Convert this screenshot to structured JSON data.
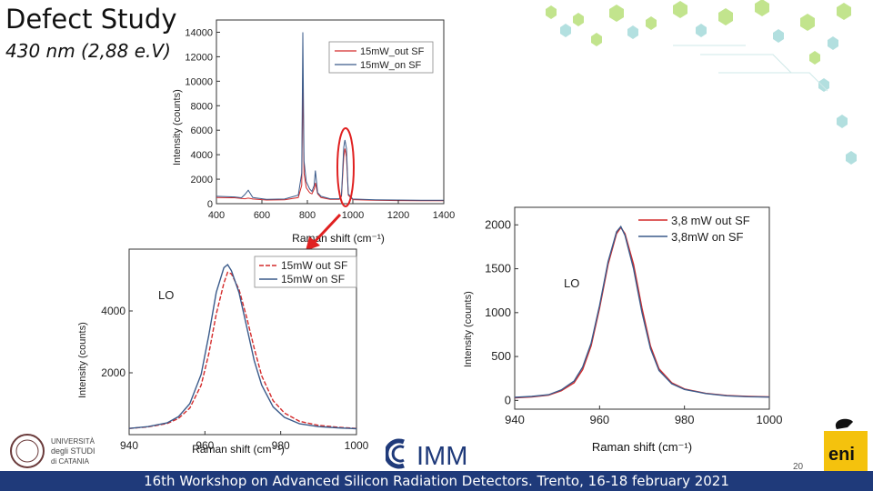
{
  "slide": {
    "title": "Defect Study",
    "subtitle": "430 nm (2,88 e.V)",
    "footer": "16th Workshop on Advanced Silicon Radiation Detectors. Trento, 16-18 february 2021",
    "page_number": "20",
    "logos": {
      "unict": [
        "UNIVERSITÀ",
        "degli STUDI",
        "di CATANIA"
      ],
      "imm": "IMM",
      "eni": "eni"
    },
    "colors": {
      "red": "#d42a2a",
      "blue": "#3a5a8a",
      "footer_bg": "#1f3a7a",
      "accent_green": "#a8d85a",
      "accent_cyan": "#9fd8d8"
    }
  },
  "chart_data": [
    {
      "id": "overview",
      "type": "line",
      "xlabel": "Raman shift (cm⁻¹)",
      "ylabel": "Intensity (counts)",
      "xlim": [
        400,
        1400
      ],
      "ylim": [
        0,
        15000
      ],
      "xticks": [
        400,
        600,
        800,
        1000,
        1200,
        1400
      ],
      "yticks": [
        0,
        2000,
        4000,
        6000,
        8000,
        10000,
        12000,
        14000
      ],
      "legend": [
        "15mW_out SF",
        "15mW_on SF"
      ],
      "legend_position": "top-right",
      "series": [
        {
          "name": "15mW_out SF",
          "color": "#d42a2a",
          "x": [
            400,
            480,
            510,
            525,
            540,
            560,
            620,
            700,
            760,
            775,
            780,
            785,
            795,
            810,
            820,
            830,
            835,
            845,
            860,
            900,
            940,
            950,
            960,
            965,
            972,
            980,
            1000,
            1100,
            1200,
            1300,
            1400
          ],
          "y": [
            500,
            480,
            420,
            400,
            450,
            380,
            300,
            320,
            500,
            1500,
            10500,
            2500,
            1300,
            900,
            800,
            1200,
            1700,
            800,
            500,
            350,
            350,
            600,
            3800,
            4500,
            3800,
            700,
            330,
            280,
            250,
            240,
            240
          ]
        },
        {
          "name": "15mW_on SF",
          "color": "#3a5a8a",
          "x": [
            400,
            480,
            510,
            525,
            540,
            560,
            620,
            700,
            760,
            775,
            780,
            785,
            795,
            810,
            820,
            830,
            835,
            845,
            860,
            900,
            940,
            950,
            960,
            965,
            972,
            980,
            1000,
            1100,
            1200,
            1300,
            1400
          ],
          "y": [
            600,
            550,
            480,
            750,
            1100,
            500,
            350,
            380,
            700,
            2500,
            14000,
            3500,
            1800,
            1200,
            1000,
            1500,
            2700,
            900,
            600,
            400,
            400,
            700,
            4600,
            5200,
            4500,
            800,
            380,
            320,
            300,
            280,
            280
          ]
        }
      ]
    },
    {
      "id": "lo_zoom_15mW",
      "type": "line",
      "annotation": "LO",
      "xlabel": "Raman shift (cm⁻¹)",
      "ylabel": "Intensity (counts)",
      "xlim": [
        940,
        1000
      ],
      "ylim": [
        0,
        6000
      ],
      "xticks": [
        940,
        960,
        980,
        1000
      ],
      "yticks": [
        2000,
        4000
      ],
      "legend": [
        "15mW out SF",
        "15mW on SF"
      ],
      "legend_position": "top-right",
      "series": [
        {
          "name": "15mW out SF",
          "color": "#d42a2a",
          "x": [
            940,
            945,
            950,
            953,
            956,
            959,
            961,
            963,
            965,
            966,
            967,
            969,
            971,
            973,
            975,
            978,
            981,
            985,
            990,
            995,
            1000
          ],
          "y": [
            200,
            250,
            360,
            520,
            860,
            1600,
            2600,
            3900,
            4900,
            5250,
            5200,
            4700,
            3800,
            2800,
            1900,
            1100,
            700,
            430,
            300,
            240,
            200
          ]
        },
        {
          "name": "15mW on SF",
          "color": "#3a5a8a",
          "x": [
            940,
            945,
            950,
            953,
            956,
            959,
            961,
            963,
            965,
            966,
            967,
            969,
            971,
            973,
            975,
            978,
            981,
            985,
            990,
            995,
            1000
          ],
          "y": [
            200,
            260,
            380,
            580,
            1000,
            1950,
            3200,
            4600,
            5400,
            5500,
            5300,
            4600,
            3500,
            2400,
            1600,
            900,
            560,
            350,
            260,
            220,
            190
          ]
        }
      ]
    },
    {
      "id": "lo_zoom_3_8mW",
      "type": "line",
      "annotation": "LO",
      "xlabel": "Raman shift (cm⁻¹)",
      "ylabel": "Intensity (counts)",
      "xlim": [
        940,
        1000
      ],
      "ylim": [
        -100,
        2200
      ],
      "xticks": [
        940,
        960,
        980,
        1000
      ],
      "yticks": [
        0,
        500,
        1000,
        1500,
        2000
      ],
      "legend": [
        "3,8 mW out SF",
        "3,8mW on SF"
      ],
      "legend_position": "top-right",
      "series": [
        {
          "name": "3,8 mW out SF",
          "color": "#d42a2a",
          "x": [
            940,
            944,
            948,
            951,
            954,
            956,
            958,
            960,
            962,
            964,
            965,
            966,
            968,
            970,
            972,
            974,
            977,
            980,
            985,
            990,
            995,
            1000
          ],
          "y": [
            30,
            40,
            60,
            110,
            200,
            350,
            620,
            1050,
            1550,
            1900,
            1970,
            1900,
            1550,
            1050,
            620,
            360,
            200,
            130,
            80,
            55,
            45,
            40
          ]
        },
        {
          "name": "3,8mW on SF",
          "color": "#3a5a8a",
          "x": [
            940,
            944,
            948,
            951,
            954,
            956,
            958,
            960,
            962,
            964,
            965,
            966,
            968,
            970,
            972,
            974,
            977,
            980,
            985,
            990,
            995,
            1000
          ],
          "y": [
            35,
            45,
            65,
            120,
            220,
            380,
            650,
            1080,
            1580,
            1920,
            1980,
            1880,
            1500,
            1000,
            590,
            340,
            190,
            125,
            78,
            52,
            42,
            38
          ]
        }
      ]
    }
  ]
}
